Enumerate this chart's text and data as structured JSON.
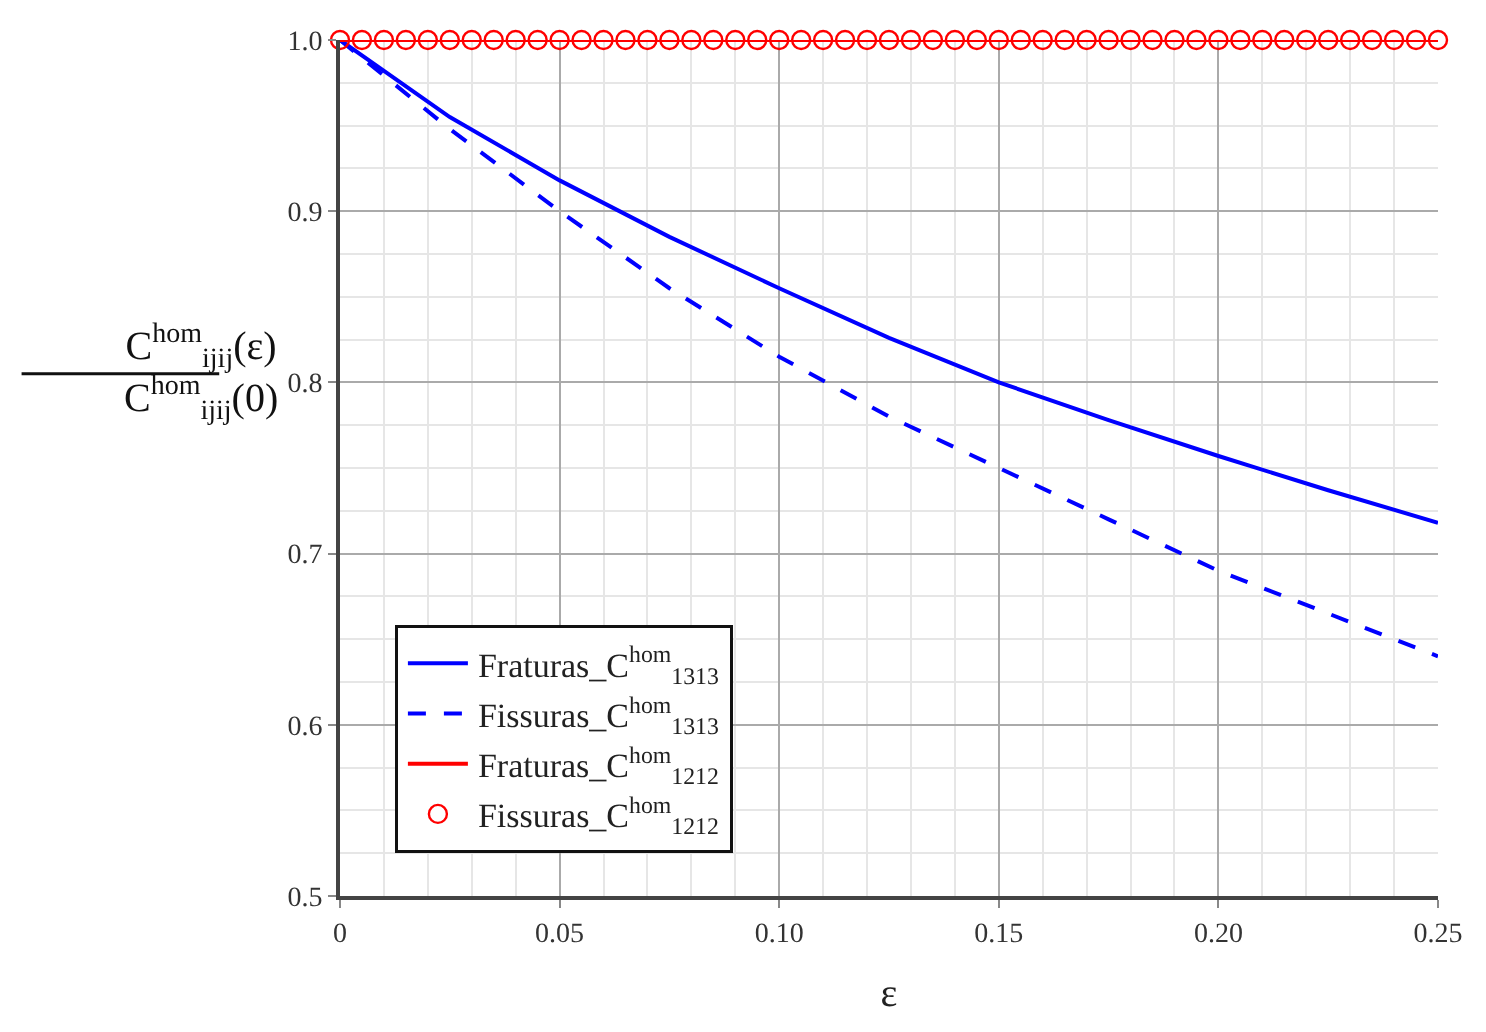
{
  "chart_data": {
    "type": "line",
    "xlabel": "ε",
    "ylabel": "C$^{hom}$$_{ijij}$(ε)\nC$^{hom}$$_{ijij}$(0)",
    "xlim": [
      0,
      0.25
    ],
    "ylim": [
      0.5,
      1.0
    ],
    "xticks": [
      0,
      0.05,
      {
        "value": 0.1,
        "label": "0.10"
      },
      0.15,
      {
        "value": 0.2,
        "label": "0.20"
      },
      0.25
    ],
    "yticks": [
      0.5,
      0.6,
      0.7,
      0.8,
      0.9,
      {
        "value": 1.0,
        "label": "1.0"
      }
    ],
    "grid": true,
    "legend": "bottom left",
    "series": [
      {
        "name": "Fraturas_C$^{hom}$$_{1313}$",
        "color": "#0000ff",
        "line_style": "solid",
        "marker": "none",
        "x": [
          0,
          0.025,
          0.05,
          0.075,
          0.1,
          0.125,
          0.15,
          0.175,
          0.2,
          0.225,
          0.25
        ],
        "values": [
          1.0,
          0.955,
          0.918,
          0.885,
          0.855,
          0.826,
          0.8,
          0.778,
          0.757,
          0.737,
          0.718
        ]
      },
      {
        "name": "Fissuras_C$^{hom}$$_{1313}$",
        "color": "#0000ff",
        "line_style": "dashed",
        "marker": "none",
        "x": [
          0,
          0.025,
          0.05,
          0.075,
          0.1,
          0.125,
          0.15,
          0.175,
          0.2,
          0.225,
          0.25
        ],
        "values": [
          1.0,
          0.948,
          0.9,
          0.855,
          0.815,
          0.78,
          0.75,
          0.72,
          0.69,
          0.665,
          0.64
        ]
      },
      {
        "name": "Fissuras_C$^{hom}$$_{1212}$",
        "type": "scatter",
        "color": "#ff0000",
        "marker": "circle",
        "x": [
          0,
          0.005,
          0.01,
          0.015,
          0.02,
          0.025,
          0.03,
          0.035,
          0.04,
          0.045,
          0.05,
          0.055,
          0.06,
          0.065,
          0.07,
          0.075,
          0.08,
          0.085,
          0.09,
          0.095,
          0.1,
          0.105,
          0.11,
          0.115,
          0.12,
          0.125,
          0.13,
          0.135,
          0.14,
          0.145,
          0.15,
          0.155,
          0.16,
          0.165,
          0.17,
          0.175,
          0.18,
          0.185,
          0.19,
          0.195,
          0.2,
          0.205,
          0.21,
          0.215,
          0.22,
          0.225,
          0.23,
          0.235,
          0.24,
          0.245,
          0.25
        ],
        "values": [
          1.0,
          1.0,
          1.0,
          1.0,
          1.0,
          1.0,
          1.0,
          1.0,
          1.0,
          1.0,
          1.0,
          1.0,
          1.0,
          1.0,
          1.0,
          1.0,
          1.0,
          1.0,
          1.0,
          1.0,
          1.0,
          1.0,
          1.0,
          1.0,
          1.0,
          1.0,
          1.0,
          1.0,
          1.0,
          1.0,
          1.0,
          1.0,
          1.0,
          1.0,
          1.0,
          1.0,
          1.0,
          1.0,
          1.0,
          1.0,
          1.0,
          1.0,
          1.0,
          1.0,
          1.0,
          1.0,
          1.0,
          1.0,
          1.0,
          1.0,
          1.0
        ]
      },
      {
        "name": "Fraturas_C$^{hom}$$_{1212}$",
        "color": "#ff0000",
        "line_style": "solid",
        "x": [
          0,
          0.25
        ],
        "values": [
          1.0,
          1.0
        ]
      }
    ]
  }
}
